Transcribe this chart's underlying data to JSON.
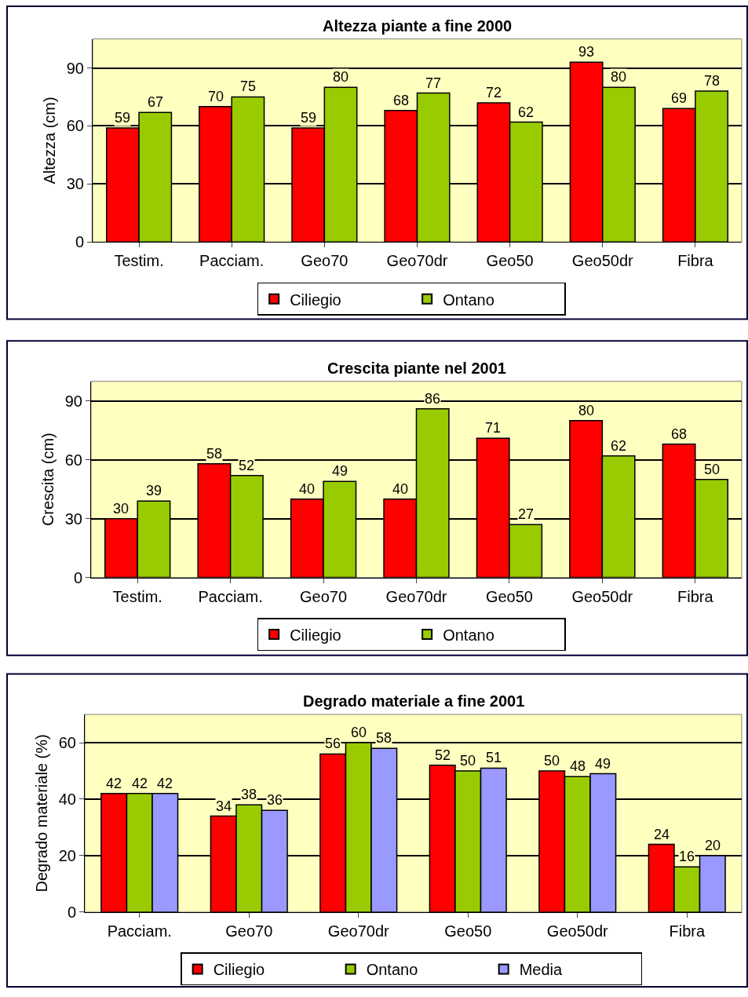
{
  "chart_data": [
    {
      "type": "bar",
      "title": "Altezza piante a fine 2000",
      "ylabel": "Altezza (cm)",
      "categories": [
        "Testim.",
        "Pacciam.",
        "Geo70",
        "Geo70dr",
        "Geo50",
        "Geo50dr",
        "Fibra"
      ],
      "series": [
        {
          "name": "Ciliegio",
          "color": "#ff0000",
          "values": [
            59,
            70,
            59,
            68,
            72,
            93,
            69
          ]
        },
        {
          "name": "Ontano",
          "color": "#99cc00",
          "values": [
            67,
            75,
            80,
            77,
            62,
            80,
            78
          ]
        }
      ],
      "ylim": [
        0,
        105
      ],
      "yticks": [
        0,
        30,
        60,
        90
      ],
      "grid": "y",
      "legend": "bottom",
      "data_labels": true
    },
    {
      "type": "bar",
      "title": "Crescita piante nel 2001",
      "ylabel": "Crescita (cm)",
      "categories": [
        "Testim.",
        "Pacciam.",
        "Geo70",
        "Geo70dr",
        "Geo50",
        "Geo50dr",
        "Fibra"
      ],
      "series": [
        {
          "name": "Ciliegio",
          "color": "#ff0000",
          "values": [
            30,
            58,
            40,
            40,
            71,
            80,
            68
          ]
        },
        {
          "name": "Ontano",
          "color": "#99cc00",
          "values": [
            39,
            52,
            49,
            86,
            27,
            62,
            50
          ]
        }
      ],
      "ylim": [
        0,
        100
      ],
      "yticks": [
        0,
        30,
        60,
        90
      ],
      "grid": "y",
      "legend": "bottom",
      "data_labels": true
    },
    {
      "type": "bar",
      "title": "Degrado materiale a fine 2001",
      "ylabel": "Degrado materiale (%)",
      "categories": [
        "Pacciam.",
        "Geo70",
        "Geo70dr",
        "Geo50",
        "Geo50dr",
        "Fibra"
      ],
      "series": [
        {
          "name": "Ciliegio",
          "color": "#ff0000",
          "values": [
            42,
            34,
            56,
            52,
            50,
            24
          ]
        },
        {
          "name": "Ontano",
          "color": "#99cc00",
          "values": [
            42,
            38,
            60,
            50,
            48,
            16
          ]
        },
        {
          "name": "Media",
          "color": "#9999ff",
          "values": [
            42,
            36,
            58,
            51,
            49,
            20
          ]
        }
      ],
      "ylim": [
        0,
        70
      ],
      "yticks": [
        0,
        20,
        40,
        60
      ],
      "grid": "y",
      "legend": "bottom",
      "data_labels": true
    }
  ]
}
